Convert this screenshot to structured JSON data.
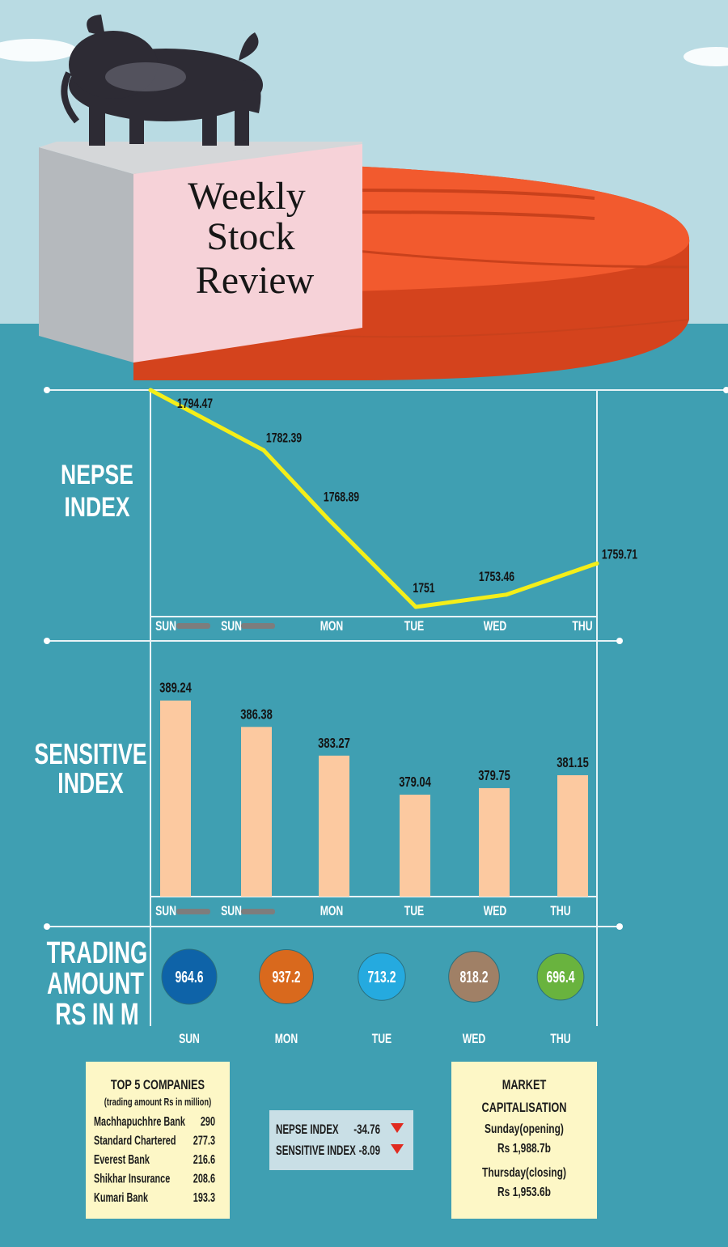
{
  "header": {
    "title_lines": [
      "Weekly",
      "Stock",
      "Review"
    ]
  },
  "colors": {
    "sky": "#b9dbe3",
    "sea": "#3f9fb2",
    "pie": "#f25a2e",
    "pie_dark": "#d4431d",
    "line": "#f4ee19",
    "bar": "#fcc9a0",
    "bubble_sun": "#0e63a8",
    "bubble_mon": "#d9691d",
    "bubble_tue": "#25aadf",
    "bubble_wed": "#a08066",
    "bubble_thu": "#69b33e",
    "down_arrow": "#e02b20",
    "box": "#fdf7c6"
  },
  "icons": [
    "bull-statue-icon",
    "pie-chart-icon",
    "down-arrow-icon"
  ],
  "chart_data": [
    {
      "type": "line",
      "title": "NEPSE INDEX",
      "x": [
        "SUN",
        "SUN",
        "MON",
        "TUE",
        "WED",
        "THU"
      ],
      "values": [
        1794.47,
        1782.39,
        1768.89,
        1751,
        1753.46,
        1759.71
      ],
      "value_labels": [
        "1794.47",
        "1782.39",
        "1768.89",
        "1751",
        "1753.46",
        "1759.71"
      ],
      "ylim": [
        1751,
        1794.47
      ],
      "grid": false
    },
    {
      "type": "bar",
      "title": "SENSITIVE INDEX",
      "categories": [
        "SUN",
        "SUN",
        "MON",
        "TUE",
        "WED",
        "THU"
      ],
      "values": [
        389.24,
        386.38,
        383.27,
        379.04,
        379.75,
        381.15
      ],
      "value_labels": [
        "389.24",
        "386.38",
        "383.27",
        "379.04",
        "379.75",
        "381.15"
      ],
      "ylim": [
        368,
        390
      ],
      "grid": false
    },
    {
      "type": "scatter",
      "title": "TRADING AMOUNT RS IN M",
      "categories": [
        "SUN",
        "MON",
        "TUE",
        "WED",
        "THU"
      ],
      "values": [
        964.6,
        937.2,
        713.2,
        818.2,
        696.4
      ],
      "value_labels": [
        "964.6",
        "937.2",
        "713.2",
        "818.2",
        "696.4"
      ]
    }
  ],
  "top5": {
    "title": "TOP 5 COMPANIES",
    "subtitle": "(trading amount Rs in million)",
    "rows": [
      {
        "name": "Machhapuchhre Bank",
        "value": "290"
      },
      {
        "name": "Standard Chartered",
        "value": "277.3"
      },
      {
        "name": "Everest Bank",
        "value": "216.6"
      },
      {
        "name": "Shikhar Insurance",
        "value": "208.6"
      },
      {
        "name": "Kumari Bank",
        "value": "193.3"
      }
    ]
  },
  "change": {
    "rows": [
      {
        "label": "NEPSE INDEX",
        "value": "-34.76"
      },
      {
        "label": "SENSITIVE INDEX",
        "value": "-8.09"
      }
    ]
  },
  "market": {
    "title_lines": [
      "MARKET",
      "CAPITALISATION"
    ],
    "open_label": "Sunday(opening)",
    "open_value": "Rs 1,988.7b",
    "close_label": "Thursday(closing)",
    "close_value": "Rs 1,953.6b"
  }
}
